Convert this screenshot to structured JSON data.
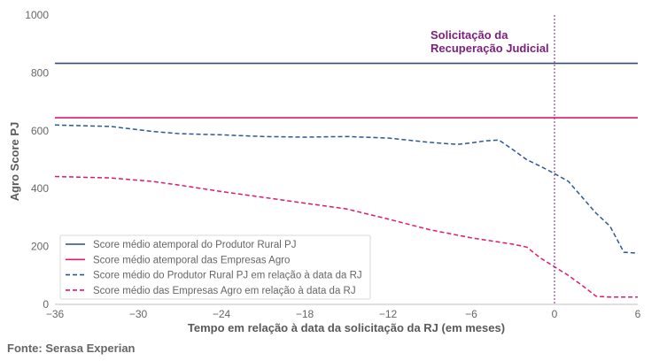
{
  "chart_data": {
    "type": "line",
    "xlabel": "Tempo em relação à data da solicitação da RJ (em meses)",
    "ylabel": "Agro Score PJ",
    "xlim": [
      -36,
      6
    ],
    "ylim": [
      0,
      1000
    ],
    "xticks": [
      -36,
      -30,
      -24,
      -18,
      -12,
      -6,
      0,
      6
    ],
    "xtick_labels": [
      "−36",
      "−30",
      "−24",
      "−18",
      "−12",
      "−6",
      "0",
      "6"
    ],
    "yticks": [
      0,
      200,
      400,
      600,
      800,
      1000
    ],
    "ytick_labels": [
      "0",
      "200",
      "400",
      "600",
      "800",
      "1000"
    ],
    "annotation": {
      "x": 0,
      "lines": [
        "Solicitação da",
        "Recuperação Judicial"
      ],
      "color": "#7b1f7b"
    },
    "series": [
      {
        "name": "Score médio atemporal do Produtor Rural PJ",
        "style": "solid",
        "color": "#2b4f7a",
        "x": [
          -36,
          6
        ],
        "y": [
          833,
          833
        ]
      },
      {
        "name": "Score médio atemporal das Empresas Agro",
        "style": "solid",
        "color": "#e0186e",
        "x": [
          -36,
          6
        ],
        "y": [
          645,
          645
        ]
      },
      {
        "name": "Score médio do Produtor Rural PJ em relação à data da RJ",
        "style": "dashed",
        "color": "#2b5896",
        "x": [
          -36,
          -32,
          -29,
          -27,
          -24,
          -21,
          -18,
          -15,
          -12,
          -9,
          -7,
          -6,
          -5,
          -4,
          -3,
          -2,
          -1,
          0,
          1,
          2,
          3,
          4,
          5,
          6
        ],
        "y": [
          620,
          615,
          598,
          590,
          586,
          580,
          578,
          580,
          575,
          560,
          553,
          558,
          565,
          568,
          535,
          500,
          477,
          452,
          425,
          370,
          315,
          270,
          180,
          177
        ]
      },
      {
        "name": "Score médio das Empresas Agro em relação à data da RJ",
        "style": "dashed",
        "color": "#e0186e",
        "x": [
          -36,
          -32,
          -29,
          -27,
          -24,
          -21,
          -18,
          -15,
          -12,
          -9,
          -6,
          -3,
          -2,
          -1,
          0,
          1,
          2,
          3,
          4,
          5,
          6
        ],
        "y": [
          442,
          437,
          425,
          412,
          390,
          370,
          350,
          330,
          295,
          258,
          230,
          208,
          198,
          160,
          130,
          100,
          65,
          28,
          25,
          25,
          25
        ]
      }
    ]
  },
  "source": "Fonte: Serasa Experian"
}
